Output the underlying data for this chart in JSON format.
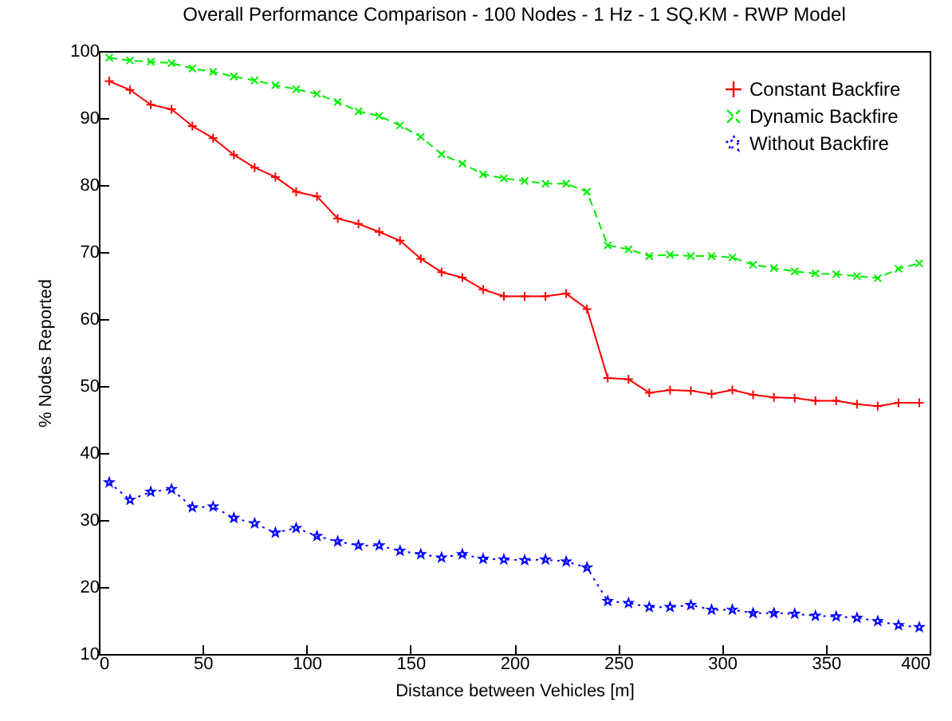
{
  "chart_data": {
    "type": "line",
    "title": "Overall Performance Comparison - 100 Nodes - 1 Hz - 1 SQ.KM - RWP Model",
    "xlabel": "Distance between Vehicles [m]",
    "ylabel": "% Nodes Reported",
    "x": [
      5,
      15,
      25,
      35,
      45,
      55,
      65,
      75,
      85,
      95,
      105,
      115,
      125,
      135,
      145,
      155,
      165,
      175,
      185,
      195,
      205,
      215,
      225,
      235,
      245,
      255,
      265,
      275,
      285,
      295,
      305,
      315,
      325,
      335,
      345,
      355,
      365,
      375,
      385,
      395
    ],
    "series": [
      {
        "name": "Constant Backfire",
        "color": "#ff0000",
        "marker": "cross",
        "line_style": "solid",
        "values": [
          95.5,
          94.2,
          92,
          91.3,
          88.8,
          87,
          84.5,
          82.6,
          81.2,
          79,
          78.3,
          75,
          74.2,
          73,
          71.7,
          69,
          67,
          66.2,
          64.4,
          63.4,
          63.4,
          63.4,
          63.8,
          61.5,
          51.2,
          51,
          49,
          49.4,
          49.3,
          48.8,
          49.4,
          48.7,
          48.3,
          48.2,
          47.8,
          47.8,
          47.3,
          47,
          47.5,
          47.5
        ]
      },
      {
        "name": "Dynamic Backfire",
        "color": "#00ee00",
        "marker": "x",
        "line_style": "dashed",
        "values": [
          99,
          98.6,
          98.4,
          98.2,
          97.4,
          96.9,
          96.2,
          95.6,
          94.9,
          94.3,
          93.6,
          92.4,
          91,
          90.3,
          88.9,
          87.2,
          84.6,
          83.2,
          81.6,
          81,
          80.6,
          80.2,
          80.2,
          79,
          71,
          70.4,
          69.4,
          69.6,
          69.4,
          69.4,
          69.2,
          68.1,
          67.6,
          67.1,
          66.8,
          66.7,
          66.4,
          66.1,
          67.5,
          68.3
        ]
      },
      {
        "name": "Without Backfire",
        "color": "#0000ff",
        "marker": "star",
        "line_style": "dotted",
        "values": [
          35.6,
          33,
          34.2,
          34.6,
          31.9,
          32,
          30.3,
          29.5,
          28.1,
          28.8,
          27.6,
          26.8,
          26.2,
          26.2,
          25.4,
          24.9,
          24.4,
          24.9,
          24.2,
          24.1,
          24,
          24.1,
          23.8,
          22.9,
          17.9,
          17.6,
          17,
          17,
          17.3,
          16.6,
          16.6,
          16.1,
          16.1,
          16,
          15.7,
          15.6,
          15.4,
          14.9,
          14.3,
          14
        ]
      }
    ],
    "xlim": [
      0,
      400
    ],
    "xticks": [
      0,
      50,
      100,
      150,
      200,
      250,
      300,
      350,
      400
    ],
    "ylim": [
      10,
      100
    ],
    "yticks": [
      10,
      20,
      30,
      40,
      50,
      60,
      70,
      80,
      90,
      100
    ],
    "grid": false,
    "legend": "top right"
  }
}
